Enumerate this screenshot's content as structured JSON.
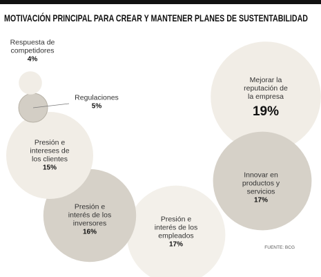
{
  "chart_data": {
    "type": "bubble",
    "title": "MOTIVACIÓN PRINCIPAL PARA CREAR Y MANTENER PLANES DE SUSTENTABILIDAD",
    "categories": [
      "Respuesta de\ncompetidores",
      "Regulaciones",
      "Presión e\nintereses de\nlos clientes",
      "Presión e\ninterés de los\ninversores",
      "Presión e\ninterés de los\nempleados",
      "Innovar en\nproductos y\nservicios",
      "Mejorar la\nreputación de\nla empresa"
    ],
    "values": [
      4,
      5,
      15,
      16,
      17,
      17,
      19
    ],
    "value_labels": [
      "4%",
      "5%",
      "15%",
      "16%",
      "17%",
      "17%",
      "19%"
    ],
    "colors": [
      "#f1ede6",
      "#d3cec5",
      "#f1ede6",
      "#d6d1c8",
      "#f3f0ea",
      "#d6d1c8",
      "#f1ede6"
    ],
    "source": "FUENTE: BCG"
  }
}
